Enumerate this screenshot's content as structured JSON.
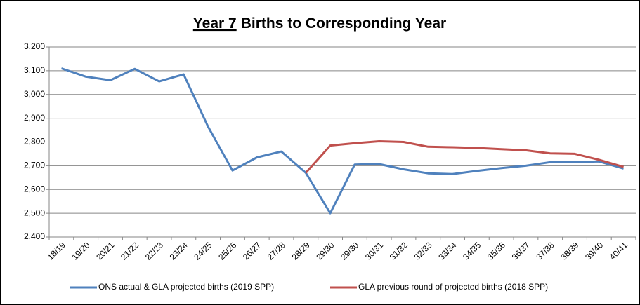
{
  "chart_data": {
    "type": "line",
    "title": [
      "Year 7",
      "Births to Corresponding Year"
    ],
    "categories": [
      "18/19",
      "19/20",
      "20/21",
      "21/22",
      "22/23",
      "23/24",
      "24/25",
      "25/26",
      "26/27",
      "27/28",
      "28/29",
      "29/30",
      "29/30",
      "30/31",
      "31/32",
      "32/33",
      "33/34",
      "34/35",
      "35/36",
      "36/37",
      "37/38",
      "38/39",
      "39/40",
      "40/41"
    ],
    "series": [
      {
        "name": "ONS actual & GLA projected births (2019 SPP)",
        "color": "#4f81bd",
        "values": [
          3110,
          3075,
          3060,
          3108,
          3055,
          3085,
          2865,
          2680,
          2735,
          2760,
          2670,
          2500,
          2705,
          2707,
          2685,
          2668,
          2665,
          2678,
          2690,
          2700,
          2715,
          2715,
          2718,
          2688
        ]
      },
      {
        "name": "GLA previous round of projected births (2018 SPP)",
        "color": "#c0504d",
        "values": [
          null,
          null,
          null,
          null,
          null,
          null,
          null,
          null,
          null,
          null,
          2670,
          2785,
          2795,
          2803,
          2800,
          2780,
          2778,
          2775,
          2770,
          2765,
          2752,
          2750,
          2725,
          2695
        ]
      }
    ],
    "ylim": [
      2400,
      3200
    ],
    "yticks": [
      {
        "value": 2400,
        "label": "2,400"
      },
      {
        "value": 2500,
        "label": "2,500"
      },
      {
        "value": 2600,
        "label": "2,600"
      },
      {
        "value": 2700,
        "label": "2,700"
      },
      {
        "value": 2800,
        "label": "2,800"
      },
      {
        "value": 2900,
        "label": "2,900"
      },
      {
        "value": 3000,
        "label": "3,000"
      },
      {
        "value": 3100,
        "label": "3,100"
      },
      {
        "value": 3200,
        "label": "3,200"
      }
    ],
    "grid": true,
    "legend": "bottom"
  }
}
